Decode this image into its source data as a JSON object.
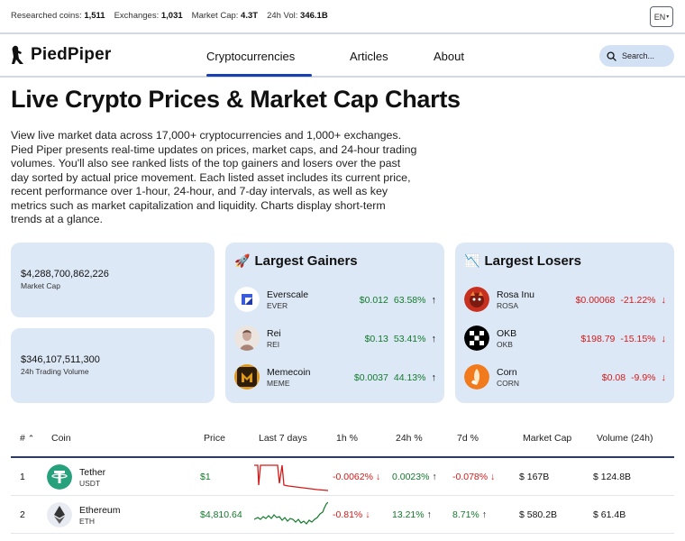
{
  "topbar": {
    "stats": [
      {
        "label": "Researched coins:",
        "value": "1,511"
      },
      {
        "label": "Exchanges:",
        "value": "1,031"
      },
      {
        "label": "Market Cap:",
        "value": "4.3T"
      },
      {
        "label": "24h Vol:",
        "value": "346.1B"
      }
    ],
    "language": "EN"
  },
  "nav": {
    "logo_text": "PiedPiper",
    "links": [
      "Cryptocurrencies",
      "Articles",
      "About"
    ],
    "search_placeholder": "Search..."
  },
  "hero": {
    "title": "Live Crypto Prices & Market Cap Charts",
    "description": "View live market data across 17,000+ cryptocurrencies and 1,000+ exchanges. Pied Piper presents real-time updates on prices, market caps, and 24-hour trading volumes. You'll also see ranked lists of the top gainers and losers over the past day sorted by actual price movement. Each listed asset includes its current price, recent performance over 1-hour, 24-hour, and 7-day intervals, as well as key metrics such as market capitalization and liquidity. Charts display short-term trends at a glance."
  },
  "summary": {
    "market_cap_value": "$4,288,700,862,226",
    "market_cap_label": "Market Cap",
    "volume_value": "$346,107,511,300",
    "volume_label": "24h Trading Volume"
  },
  "gainers": {
    "title": "Largest Gainers",
    "items": [
      {
        "name": "Everscale",
        "symbol": "EVER",
        "price": "$0.012",
        "change": "63.58%"
      },
      {
        "name": "Rei",
        "symbol": "REI",
        "price": "$0.13",
        "change": "53.41%"
      },
      {
        "name": "Memecoin",
        "symbol": "MEME",
        "price": "$0.0037",
        "change": "44.13%"
      }
    ]
  },
  "losers": {
    "title": "Largest Losers",
    "items": [
      {
        "name": "Rosa Inu",
        "symbol": "ROSA",
        "price": "$0.00068",
        "change": "-21.22%"
      },
      {
        "name": "OKB",
        "symbol": "OKB",
        "price": "$198.79",
        "change": "-15.15%"
      },
      {
        "name": "Corn",
        "symbol": "CORN",
        "price": "$0.08",
        "change": "-9.9%"
      }
    ]
  },
  "table": {
    "headers": [
      "#",
      "Coin",
      "Price",
      "Last 7 days",
      "1h %",
      "24h %",
      "7d %",
      "Market Cap",
      "Volume (24h)"
    ],
    "rows": [
      {
        "rank": "1",
        "name": "Tether",
        "symbol": "USDT",
        "price": "$1",
        "h1": "-0.0062%",
        "h24": "0.0023%",
        "d7": "-0.078%",
        "market_cap": "$ 167B",
        "volume": "$ 124.8B"
      },
      {
        "rank": "2",
        "name": "Ethereum",
        "symbol": "ETH",
        "price": "$4,810.64",
        "h1": "-0.81%",
        "h24": "13.21%",
        "d7": "8.71%",
        "market_cap": "$ 580.2B",
        "volume": "$ 61.4B"
      }
    ]
  },
  "colors": {
    "accent": "#1a3fae",
    "card_bg": "#dde8f6",
    "positive": "#127a2b",
    "negative": "#d41a1a"
  }
}
